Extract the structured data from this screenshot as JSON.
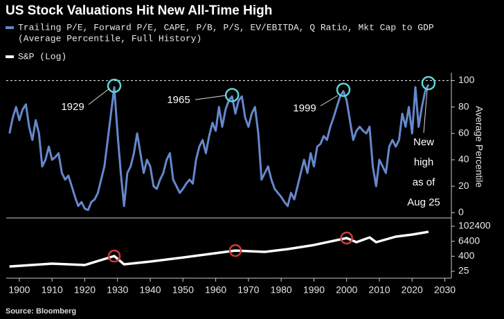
{
  "chart_data": {
    "type": "line",
    "title": "US Stock Valuations Hit New All-Time High",
    "ylabel": "Average Percentile",
    "source": "Source: Bloomberg",
    "xlim": [
      1896,
      2032
    ],
    "xticks": [
      1900,
      1910,
      1920,
      1930,
      1940,
      1950,
      1960,
      1970,
      1980,
      1990,
      2000,
      2010,
      2020,
      2030
    ],
    "ylim": [
      -3,
      106
    ],
    "yticks": [
      0,
      20,
      40,
      60,
      80,
      100
    ],
    "hline": 100,
    "y2lim": [
      7,
      320000
    ],
    "y2ticks": [
      25,
      400,
      6400,
      102400
    ],
    "y2scale": "log",
    "annotations": [
      [
        "1929"
      ],
      [
        "1965"
      ],
      [
        "1999"
      ],
      [
        "New",
        "high",
        "as of",
        "Aug 25"
      ]
    ],
    "series": [
      {
        "name": [
          "Trailing P/E, Forward P/E, CAPE, P/B, P/S, EV/EBITDA, Q Ratio, Mkt Cap to GDP",
          "(Average Percentile, Full History)"
        ],
        "color": "#6688cc",
        "x": [
          1897,
          1898,
          1899,
          1900,
          1901,
          1902,
          1903,
          1904,
          1905,
          1906,
          1907,
          1908,
          1909,
          1910,
          1911,
          1912,
          1913,
          1914,
          1915,
          1916,
          1917,
          1918,
          1919,
          1920,
          1921,
          1922,
          1923,
          1924,
          1925,
          1926,
          1927,
          1928,
          1929,
          1930,
          1931,
          1932,
          1933,
          1934,
          1935,
          1936,
          1937,
          1938,
          1939,
          1940,
          1941,
          1942,
          1943,
          1944,
          1945,
          1946,
          1947,
          1948,
          1949,
          1950,
          1951,
          1952,
          1953,
          1954,
          1955,
          1956,
          1957,
          1958,
          1959,
          1960,
          1961,
          1962,
          1963,
          1964,
          1965,
          1966,
          1967,
          1968,
          1969,
          1970,
          1971,
          1972,
          1973,
          1974,
          1975,
          1976,
          1977,
          1978,
          1979,
          1980,
          1981,
          1982,
          1983,
          1984,
          1985,
          1986,
          1987,
          1988,
          1989,
          1990,
          1991,
          1992,
          1993,
          1994,
          1995,
          1996,
          1997,
          1998,
          1999,
          2000,
          2001,
          2002,
          2003,
          2004,
          2005,
          2006,
          2007,
          2008,
          2009,
          2010,
          2011,
          2012,
          2013,
          2014,
          2015,
          2016,
          2017,
          2018,
          2019,
          2020,
          2021,
          2022,
          2023,
          2024,
          2025
        ],
        "values": [
          60,
          72,
          80,
          70,
          78,
          82,
          65,
          55,
          70,
          60,
          35,
          40,
          50,
          40,
          42,
          45,
          30,
          25,
          28,
          20,
          12,
          5,
          8,
          3,
          2,
          8,
          10,
          15,
          25,
          35,
          55,
          75,
          95,
          60,
          30,
          5,
          30,
          35,
          45,
          60,
          45,
          30,
          40,
          35,
          20,
          18,
          25,
          30,
          40,
          45,
          25,
          20,
          15,
          18,
          22,
          25,
          22,
          40,
          50,
          55,
          45,
          58,
          68,
          62,
          80,
          65,
          78,
          85,
          88,
          75,
          85,
          88,
          72,
          65,
          75,
          80,
          60,
          25,
          30,
          35,
          25,
          18,
          15,
          12,
          8,
          5,
          15,
          10,
          20,
          30,
          40,
          30,
          45,
          35,
          50,
          52,
          58,
          55,
          65,
          72,
          80,
          88,
          92,
          85,
          70,
          55,
          62,
          65,
          62,
          60,
          65,
          35,
          20,
          40,
          35,
          30,
          50,
          55,
          50,
          55,
          75,
          65,
          80,
          60,
          95,
          65,
          80,
          92,
          97
        ]
      },
      {
        "name": "S&P (Log)",
        "color": "#ffffff",
        "axis": "y2",
        "x": [
          1897,
          1910,
          1920,
          1929,
          1932,
          1940,
          1950,
          1960,
          1966,
          1975,
          1982,
          1990,
          2000,
          2003,
          2007,
          2009,
          2015,
          2020,
          2025
        ],
        "values": [
          61,
          102,
          79,
          415,
          90,
          150,
          320,
          700,
          1150,
          900,
          1500,
          3200,
          11500,
          5400,
          13000,
          5400,
          15000,
          22000,
          36500
        ]
      }
    ]
  }
}
